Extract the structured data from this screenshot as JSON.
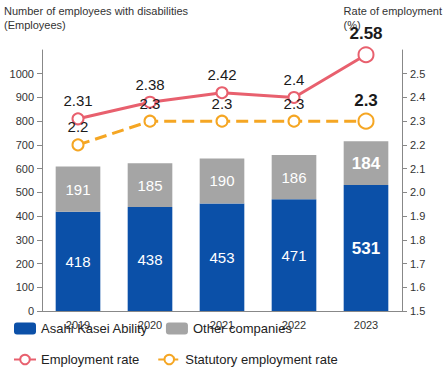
{
  "chart_data": {
    "type": "bar",
    "y_label": "Number of employees with disabilities\n(Employees)",
    "y2_label": "Rate of employment\n(%)",
    "categories": [
      "2019",
      "2020",
      "2021",
      "2022",
      "2023"
    ],
    "series": [
      {
        "name": "Asahi Kasei Ability",
        "type": "bar",
        "color": "#0b50a8",
        "values": [
          418,
          438,
          453,
          471,
          531
        ]
      },
      {
        "name": "Other companies",
        "type": "bar",
        "color": "#a5a5a5",
        "values": [
          191,
          185,
          190,
          186,
          184
        ]
      },
      {
        "name": "Employment rate",
        "type": "line",
        "axis": "y2",
        "color": "#e8606e",
        "marker": "circle",
        "line_style": "solid",
        "values": [
          2.31,
          2.38,
          2.42,
          2.4,
          2.58
        ]
      },
      {
        "name": "Statutory employment rate",
        "type": "line",
        "axis": "y2",
        "color": "#f5a623",
        "marker": "circle",
        "line_style": "dashed",
        "values": [
          2.2,
          2.3,
          2.3,
          2.3,
          2.3
        ]
      }
    ],
    "stacked": true,
    "data_labels": true,
    "legend": "bottom",
    "grid": false,
    "ylim": [
      0,
      1100
    ],
    "yticks": [
      0,
      100,
      200,
      300,
      400,
      500,
      600,
      700,
      800,
      900,
      1000
    ],
    "y2lim": [
      1.5,
      2.6
    ],
    "y2ticks": [
      1.5,
      1.6,
      1.7,
      1.8,
      1.9,
      {
        "value": 2,
        "label": "2.0"
      },
      2.1,
      2.2,
      2.3,
      2.4,
      2.5
    ]
  }
}
